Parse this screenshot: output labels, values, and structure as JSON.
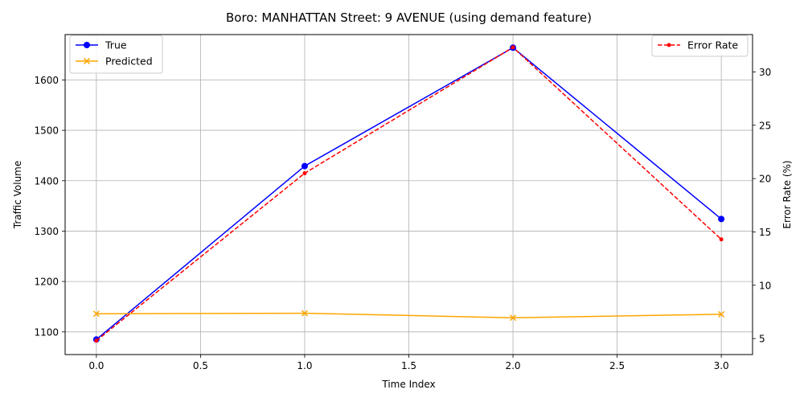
{
  "chart_data": {
    "type": "line",
    "title": "Boro: MANHATTAN Street: 9 AVENUE (using demand feature)",
    "xlabel": "Time Index",
    "ylabel": "Traffic Volume",
    "y2label": "Error Rate (%)",
    "xlim": [
      -0.15,
      3.15
    ],
    "ylim": [
      1055,
      1690
    ],
    "y2lim": [
      3.5,
      33.5
    ],
    "x_ticks": [
      0.0,
      0.5,
      1.0,
      1.5,
      2.0,
      2.5,
      3.0
    ],
    "x_tick_labels": [
      "0.0",
      "0.5",
      "1.0",
      "1.5",
      "2.0",
      "2.5",
      "3.0"
    ],
    "y_ticks": [
      1100,
      1200,
      1300,
      1400,
      1500,
      1600
    ],
    "y_tick_labels": [
      "1100",
      "1200",
      "1300",
      "1400",
      "1500",
      "1600"
    ],
    "y2_ticks": [
      5,
      10,
      15,
      20,
      25,
      30
    ],
    "y2_tick_labels": [
      "5",
      "10",
      "15",
      "20",
      "25",
      "30"
    ],
    "grid": true,
    "series": [
      {
        "name": "True",
        "axis": "left",
        "color": "#0000ff",
        "marker": "circle",
        "dash": "solid",
        "x": [
          0,
          1,
          2,
          3
        ],
        "values": [
          1085,
          1429,
          1664,
          1324
        ]
      },
      {
        "name": "Predicted",
        "axis": "left",
        "color": "#ffa500",
        "marker": "x",
        "dash": "solid",
        "x": [
          0,
          1,
          2,
          3
        ],
        "values": [
          1136,
          1137,
          1128,
          1135
        ]
      },
      {
        "name": "Error Rate",
        "axis": "right",
        "color": "#ff0000",
        "marker": "dot",
        "dash": "dashed",
        "x": [
          0,
          1,
          2,
          3
        ],
        "values": [
          4.8,
          20.5,
          32.3,
          14.3
        ]
      }
    ],
    "legends": [
      {
        "position": "top-left",
        "entries": [
          "True",
          "Predicted"
        ]
      },
      {
        "position": "top-right",
        "entries": [
          "Error Rate"
        ]
      }
    ]
  }
}
